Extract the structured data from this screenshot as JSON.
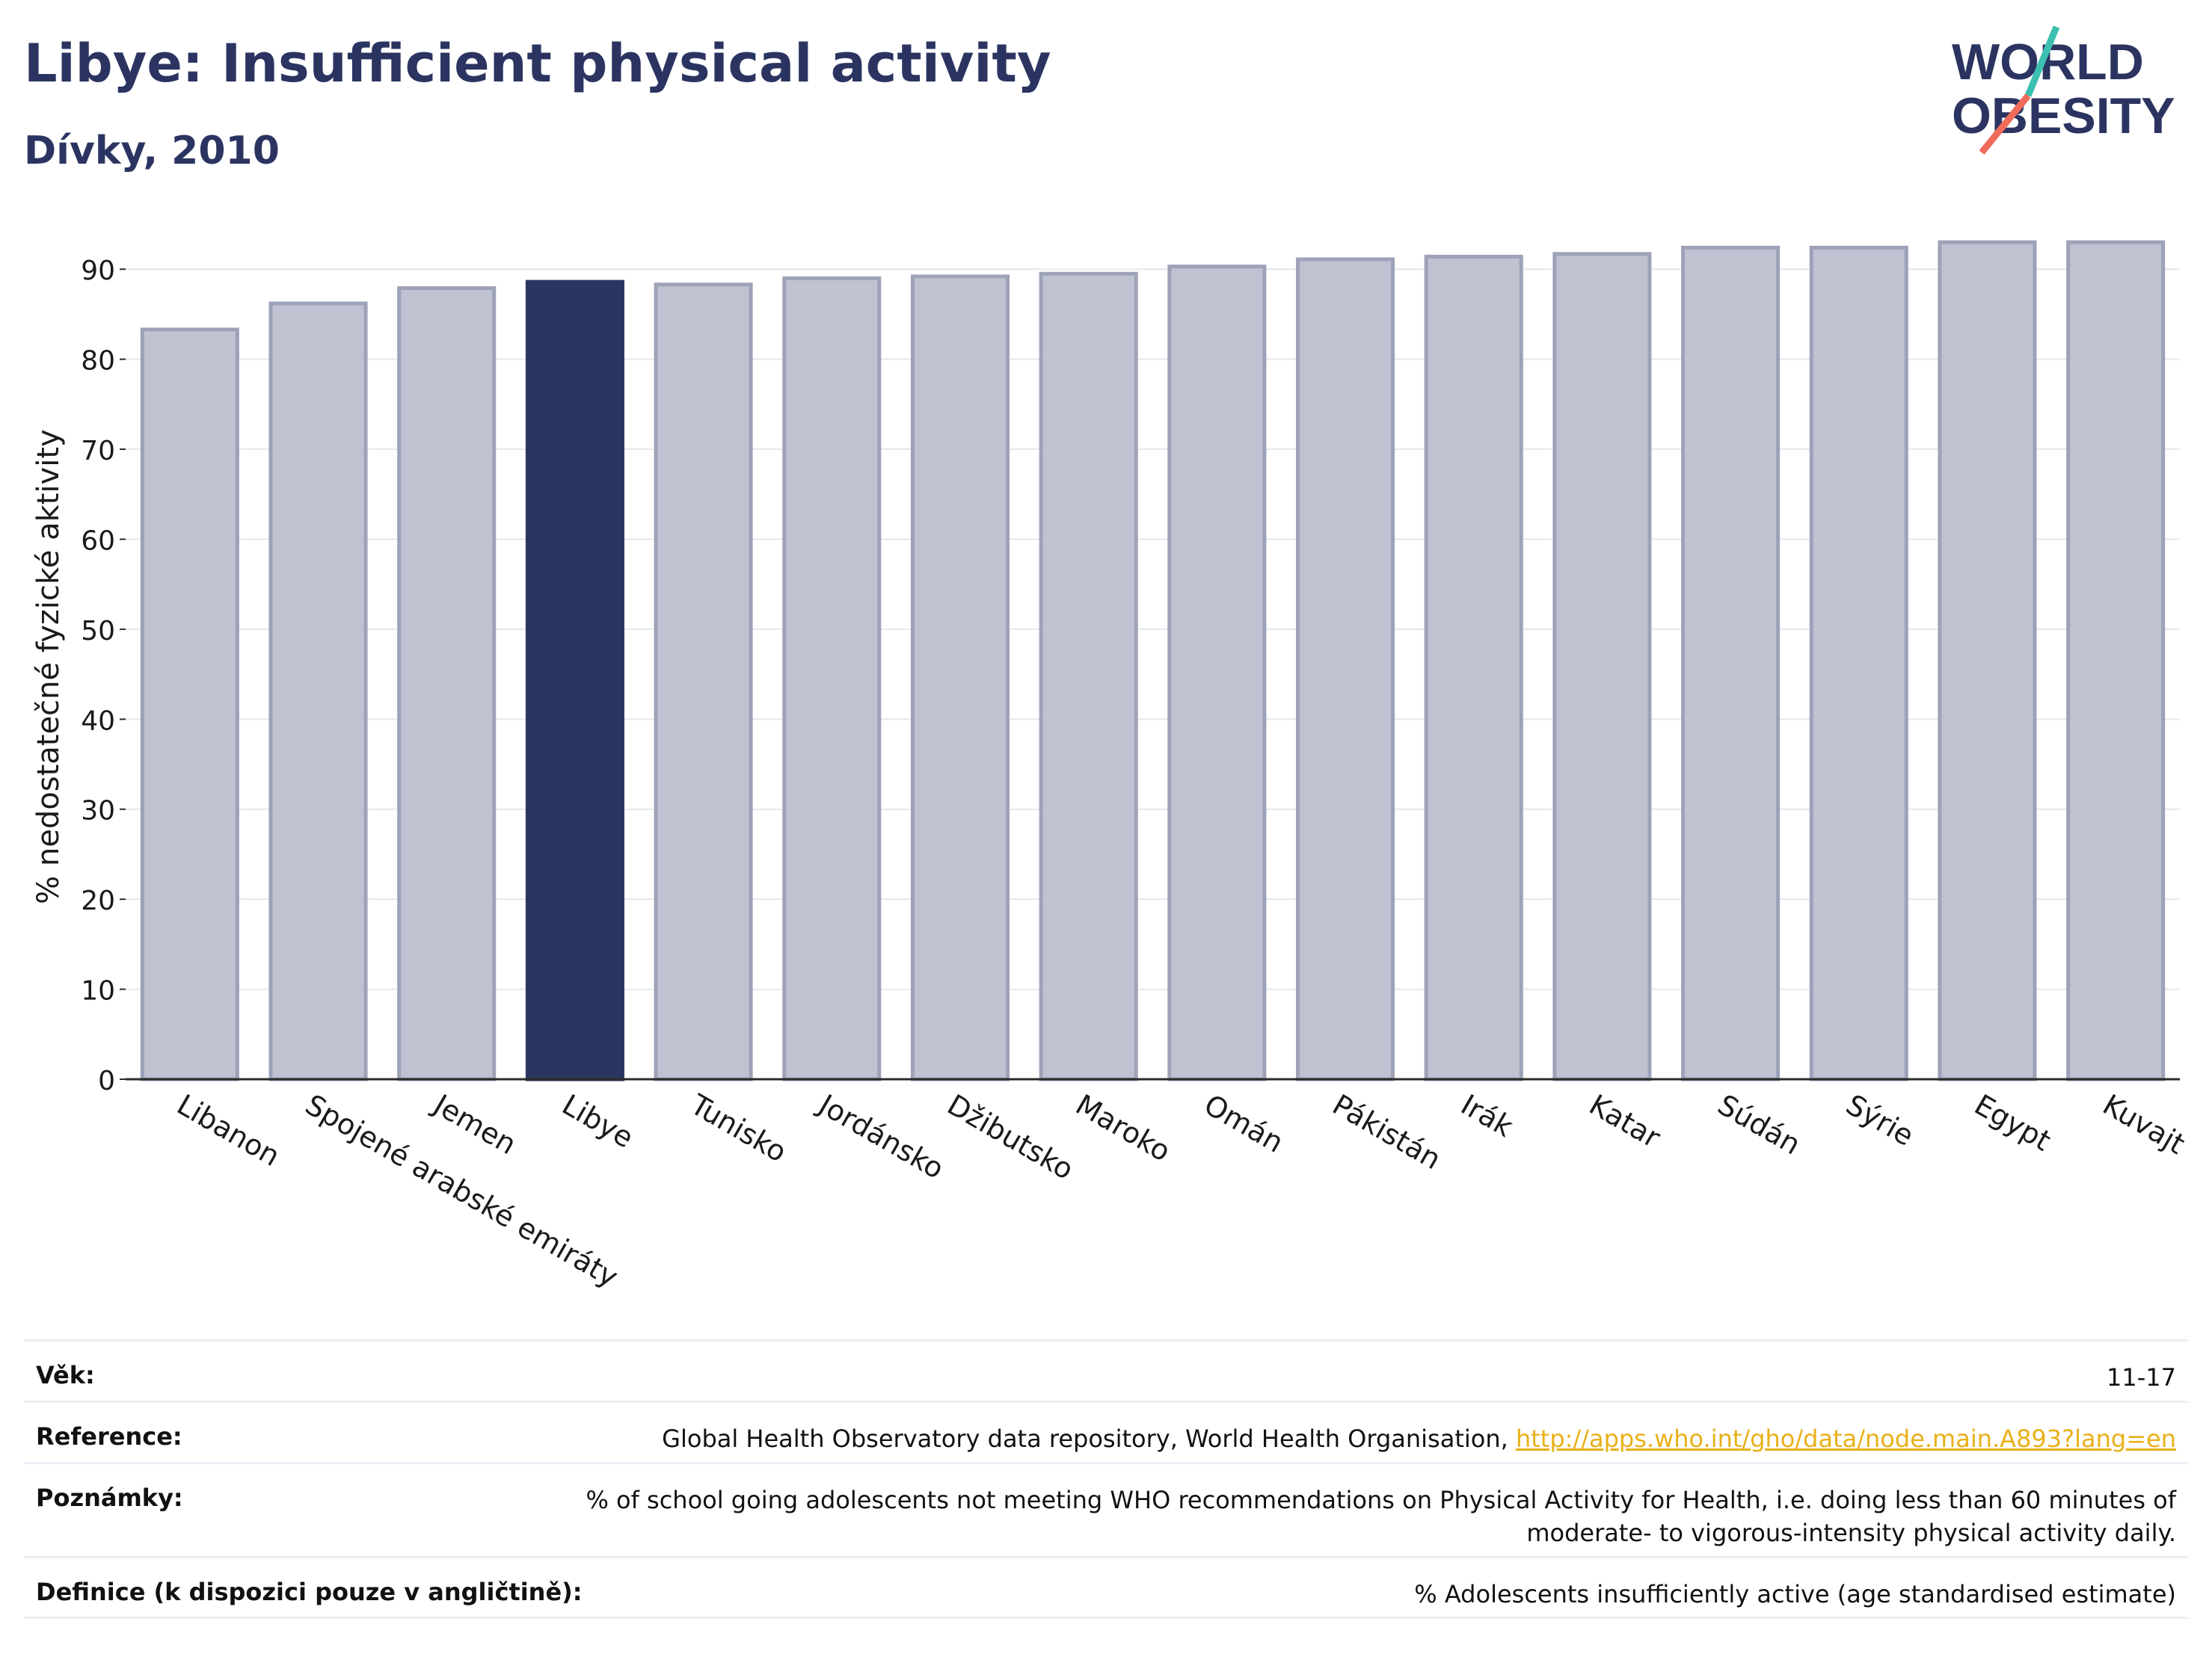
{
  "header": {
    "title": "Libye: Insufficient physical activity",
    "subtitle": "Dívky, 2010"
  },
  "logo": {
    "line1": "WORLD",
    "line2": "OBESITY"
  },
  "colors": {
    "highlight": "#2a3560",
    "bar_fill": "#bfc2d0",
    "bar_edge": "#9da2b8",
    "text": "#2b3461",
    "link": "#e8b019",
    "logo_teal": "#3bbfb0",
    "logo_coral": "#ef6b5a"
  },
  "chart_data": {
    "type": "bar",
    "categories": [
      "Libanon",
      "Spojené arabské emiráty",
      "Jemen",
      "Libye",
      "Tunisko",
      "Jordánsko",
      "Džibutsko",
      "Maroko",
      "Omán",
      "Pákistán",
      "Irák",
      "Katar",
      "Súdán",
      "Sýrie",
      "Egypt",
      "Kuvajt"
    ],
    "values": [
      83.3,
      86.2,
      87.9,
      88.6,
      88.3,
      89.0,
      89.2,
      89.5,
      90.3,
      91.1,
      91.4,
      91.7,
      92.4,
      92.4,
      93.0,
      93.0
    ],
    "highlight": "Libye",
    "ylabel": "% nedostatečné fyzické aktivity",
    "xlabel": "",
    "ylim": [
      0,
      95
    ],
    "yticks": [
      0,
      10,
      20,
      30,
      40,
      50,
      60,
      70,
      80,
      90
    ],
    "grid": true
  },
  "meta": {
    "age_label": "Věk:",
    "age_value": "11-17",
    "reference_label": "Reference:",
    "reference_text": "Global Health Observatory data repository, World Health Organisation, ",
    "reference_link": "http://apps.who.int/gho/data/node.main.A893?lang=en",
    "notes_label": "Poznámky:",
    "notes_value": "% of school going adolescents not meeting WHO recommendations on Physical Activity for Health, i.e. doing less than 60 minutes of moderate- to vigorous-intensity physical activity daily.",
    "definition_label": "Definice (k dispozici pouze v angličtině):",
    "definition_value": "% Adolescents insufficiently active (age standardised estimate)"
  }
}
